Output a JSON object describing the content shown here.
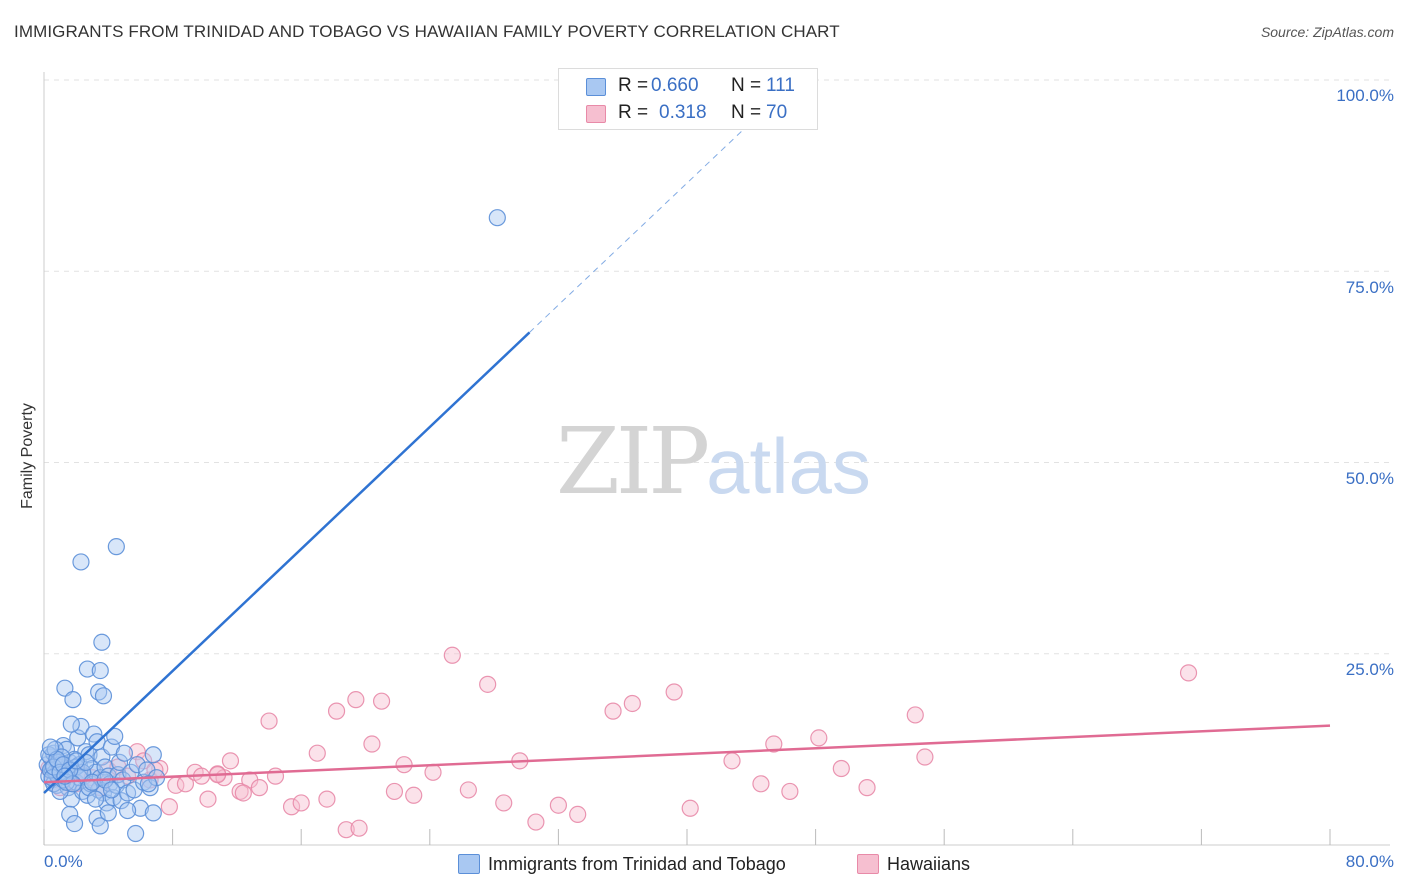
{
  "title": "IMMIGRANTS FROM TRINIDAD AND TOBAGO VS HAWAIIAN FAMILY POVERTY CORRELATION CHART",
  "source": "Source: ZipAtlas.com",
  "watermark": {
    "zip": "ZIP",
    "atlas": "atlas"
  },
  "colors": {
    "blue_fill": "#a9c8f2",
    "blue_stroke": "#5b8fd8",
    "blue_line": "#2f73d2",
    "pink_fill": "#f6bfd0",
    "pink_stroke": "#e88aa8",
    "pink_line": "#e06b93",
    "grid": "#e2e2e2",
    "accent_text": "#3a6fc4"
  },
  "stats": [
    {
      "r_label": "R =",
      "r_value": "0.660",
      "n_label": "N =",
      "n_value": "111"
    },
    {
      "r_label": "R =",
      "r_value": "0.318",
      "n_label": "N =",
      "n_value": "70"
    }
  ],
  "chart_data": {
    "type": "scatter",
    "title": "IMMIGRANTS FROM TRINIDAD AND TOBAGO VS HAWAIIAN FAMILY POVERTY CORRELATION CHART",
    "xlabel": "",
    "ylabel": "Family Poverty",
    "xlim": [
      0,
      80
    ],
    "ylim": [
      0,
      102
    ],
    "x_tick_labels": [
      "0.0%",
      "80.0%"
    ],
    "x_ticks": [
      0,
      8,
      16,
      24,
      32,
      40,
      48,
      56,
      64,
      72,
      80
    ],
    "y_ticks": [
      25,
      50,
      75,
      100
    ],
    "y_tick_labels": [
      "25.0%",
      "50.0%",
      "75.0%",
      "100.0%"
    ],
    "grid": true,
    "legend": [
      "Immigrants from Trinidad and Tobago",
      "Hawaiians"
    ],
    "series": [
      {
        "name": "Immigrants from Trinidad and Tobago",
        "r": 0.66,
        "n": 111,
        "trend": {
          "x0": 0,
          "y0": 6.8,
          "x1": 30.2,
          "y1": 67,
          "dash_to_x": 43.5,
          "dash_to_y": 93.5
        },
        "points": [
          [
            0.2,
            10.5
          ],
          [
            0.3,
            9.0
          ],
          [
            0.4,
            11.5
          ],
          [
            0.5,
            8.5
          ],
          [
            0.5,
            10.0
          ],
          [
            0.6,
            12.0
          ],
          [
            0.7,
            9.5
          ],
          [
            0.8,
            7.8
          ],
          [
            0.9,
            11.0
          ],
          [
            1.0,
            10.2
          ],
          [
            1.1,
            8.8
          ],
          [
            1.2,
            13.0
          ],
          [
            1.3,
            9.2
          ],
          [
            1.4,
            12.5
          ],
          [
            1.5,
            7.5
          ],
          [
            1.6,
            10.8
          ],
          [
            1.7,
            6.0
          ],
          [
            1.8,
            9.8
          ],
          [
            1.9,
            11.2
          ],
          [
            2.0,
            8.2
          ],
          [
            2.1,
            14.0
          ],
          [
            2.2,
            10.5
          ],
          [
            2.3,
            15.5
          ],
          [
            2.4,
            7.0
          ],
          [
            2.5,
            9.0
          ],
          [
            2.6,
            12.2
          ],
          [
            2.7,
            6.5
          ],
          [
            2.8,
            11.8
          ],
          [
            2.9,
            8.0
          ],
          [
            3.0,
            10.0
          ],
          [
            3.1,
            14.5
          ],
          [
            3.2,
            9.5
          ],
          [
            3.3,
            13.5
          ],
          [
            3.4,
            7.2
          ],
          [
            3.5,
            8.8
          ],
          [
            3.6,
            11.5
          ],
          [
            3.7,
            6.8
          ],
          [
            3.8,
            10.2
          ],
          [
            3.9,
            5.5
          ],
          [
            4.0,
            9.0
          ],
          [
            4.1,
            8.0
          ],
          [
            4.2,
            12.8
          ],
          [
            4.3,
            6.2
          ],
          [
            4.4,
            14.2
          ],
          [
            4.5,
            7.8
          ],
          [
            4.6,
            9.2
          ],
          [
            4.7,
            10.8
          ],
          [
            4.8,
            5.8
          ],
          [
            4.9,
            8.5
          ],
          [
            5.0,
            12.0
          ],
          [
            5.2,
            6.8
          ],
          [
            5.4,
            9.5
          ],
          [
            5.6,
            7.2
          ],
          [
            5.8,
            10.5
          ],
          [
            6.0,
            4.8
          ],
          [
            6.2,
            8.2
          ],
          [
            6.4,
            9.8
          ],
          [
            6.6,
            7.5
          ],
          [
            6.8,
            4.2
          ],
          [
            7.0,
            8.8
          ],
          [
            1.3,
            20.5
          ],
          [
            1.8,
            19.0
          ],
          [
            1.7,
            15.8
          ],
          [
            2.7,
            23.0
          ],
          [
            3.4,
            20.0
          ],
          [
            3.5,
            22.8
          ],
          [
            3.7,
            19.5
          ],
          [
            3.6,
            26.5
          ],
          [
            2.3,
            37.0
          ],
          [
            4.5,
            39.0
          ],
          [
            28.2,
            82.0
          ],
          [
            1.6,
            4.0
          ],
          [
            1.9,
            2.8
          ],
          [
            3.3,
            3.5
          ],
          [
            3.5,
            2.5
          ],
          [
            5.2,
            4.5
          ],
          [
            5.7,
            1.5
          ],
          [
            4.0,
            4.2
          ],
          [
            0.6,
            8.0
          ],
          [
            0.8,
            9.2
          ],
          [
            1.0,
            7.0
          ],
          [
            1.2,
            8.5
          ],
          [
            1.4,
            10.0
          ],
          [
            0.4,
            9.8
          ],
          [
            0.3,
            11.8
          ],
          [
            0.7,
            12.5
          ],
          [
            0.9,
            10.8
          ],
          [
            1.1,
            11.5
          ],
          [
            1.5,
            9.2
          ],
          [
            2.0,
            10.2
          ],
          [
            2.2,
            8.8
          ],
          [
            2.4,
            9.5
          ],
          [
            2.6,
            10.8
          ],
          [
            2.8,
            7.5
          ],
          [
            3.0,
            8.2
          ],
          [
            3.2,
            6.0
          ],
          [
            0.5,
            8.8
          ],
          [
            0.6,
            10.2
          ],
          [
            0.8,
            11.2
          ],
          [
            1.0,
            9.5
          ],
          [
            1.2,
            10.5
          ],
          [
            1.4,
            8.2
          ],
          [
            1.6,
            9.8
          ],
          [
            1.8,
            8.0
          ],
          [
            2.0,
            11.0
          ],
          [
            6.8,
            11.8
          ],
          [
            6.5,
            8.0
          ],
          [
            3.8,
            8.5
          ],
          [
            4.2,
            7.2
          ],
          [
            0.4,
            12.8
          ],
          [
            1.3,
            9.0
          ]
        ]
      },
      {
        "name": "Hawaiians",
        "r": 0.318,
        "n": 70,
        "trend": {
          "x0": 0,
          "y0": 8.2,
          "x1": 80,
          "y1": 15.6
        },
        "points": [
          [
            0.3,
            10.0
          ],
          [
            0.6,
            9.0
          ],
          [
            0.9,
            8.5
          ],
          [
            1.2,
            10.5
          ],
          [
            1.5,
            9.5
          ],
          [
            2.0,
            8.0
          ],
          [
            2.4,
            9.2
          ],
          [
            3.0,
            8.8
          ],
          [
            3.5,
            7.5
          ],
          [
            4.0,
            9.8
          ],
          [
            4.6,
            10.2
          ],
          [
            5.2,
            9.0
          ],
          [
            5.8,
            12.2
          ],
          [
            6.2,
            11.0
          ],
          [
            6.6,
            8.5
          ],
          [
            7.2,
            10.0
          ],
          [
            7.8,
            5.0
          ],
          [
            8.2,
            7.8
          ],
          [
            8.8,
            8.0
          ],
          [
            9.4,
            9.5
          ],
          [
            9.8,
            9.0
          ],
          [
            10.2,
            6.0
          ],
          [
            10.8,
            9.3
          ],
          [
            11.2,
            8.8
          ],
          [
            11.6,
            11.0
          ],
          [
            12.2,
            7.0
          ],
          [
            12.8,
            8.5
          ],
          [
            13.4,
            7.5
          ],
          [
            14.0,
            16.2
          ],
          [
            14.4,
            9.0
          ],
          [
            15.4,
            5.0
          ],
          [
            16.0,
            5.5
          ],
          [
            17.0,
            12.0
          ],
          [
            17.6,
            6.0
          ],
          [
            18.2,
            17.5
          ],
          [
            18.8,
            2.0
          ],
          [
            19.4,
            19.0
          ],
          [
            20.4,
            13.2
          ],
          [
            21.0,
            18.8
          ],
          [
            21.8,
            7.0
          ],
          [
            22.4,
            10.5
          ],
          [
            23.0,
            6.5
          ],
          [
            24.2,
            9.5
          ],
          [
            25.4,
            24.8
          ],
          [
            26.4,
            7.2
          ],
          [
            27.6,
            21.0
          ],
          [
            28.6,
            5.5
          ],
          [
            29.6,
            11.0
          ],
          [
            30.6,
            3.0
          ],
          [
            32.0,
            5.2
          ],
          [
            33.2,
            4.0
          ],
          [
            35.4,
            17.5
          ],
          [
            36.6,
            18.5
          ],
          [
            39.2,
            20.0
          ],
          [
            40.2,
            4.8
          ],
          [
            42.8,
            11.0
          ],
          [
            44.6,
            8.0
          ],
          [
            46.4,
            7.0
          ],
          [
            45.4,
            13.2
          ],
          [
            48.2,
            14.0
          ],
          [
            49.6,
            10.0
          ],
          [
            51.2,
            7.5
          ],
          [
            54.2,
            17.0
          ],
          [
            54.8,
            11.5
          ],
          [
            71.2,
            22.5
          ],
          [
            1.0,
            7.5
          ],
          [
            6.9,
            9.8
          ],
          [
            10.8,
            9.2
          ],
          [
            19.6,
            2.2
          ],
          [
            12.4,
            6.8
          ]
        ]
      }
    ]
  }
}
